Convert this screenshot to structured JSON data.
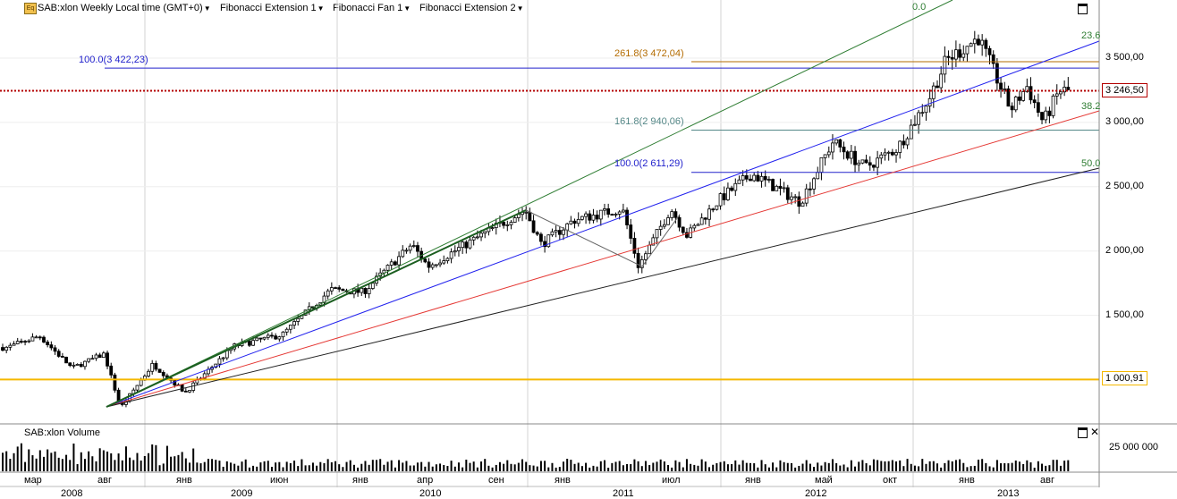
{
  "header": {
    "symbol_icon": "Eq",
    "title": "SAB:xlon Weekly Local time (GMT+0)",
    "menus": [
      "Fibonacci Extension 1",
      "Fibonacci Fan 1",
      "Fibonacci Extension 2"
    ]
  },
  "price_axis": {
    "ticks": [
      "3 500,00",
      "3 000,00",
      "2 500,00",
      "2 000,00",
      "1 500,00",
      "1 000,00"
    ],
    "tick_values": [
      3500,
      3000,
      2500,
      2000,
      1500,
      1000
    ],
    "current_price": "3 246,50",
    "current_value": 3246.5,
    "support_price": "1 000,91",
    "support_value": 1000.91
  },
  "volume_panel": {
    "title": "SAB:xlon Volume",
    "tick": "25 000 000",
    "tick_value": 25000000
  },
  "time_axis": {
    "months": [
      "мар",
      "авг",
      "янв",
      "июн",
      "янв",
      "апр",
      "сен",
      "янв",
      "июл",
      "янв",
      "май",
      "окт",
      "янв",
      "авг"
    ],
    "years": [
      "2008",
      "2009",
      "2010",
      "2011",
      "2012",
      "2013"
    ]
  },
  "fib_labels": {
    "ext1_100": "100.0(3 422,23)",
    "ext2_261": "261.8(3 472,04)",
    "ext2_161": "161.8(2 940,06)",
    "ext2_100": "100.0(2 611,29)",
    "fan_0": "0.0",
    "fan_236": "23.6",
    "fan_382": "38.2",
    "fan_50": "50.0"
  },
  "colors": {
    "support": "#f5b800",
    "current": "#b30000",
    "ext1": "#2222cc",
    "ext2_261": "#b36b00",
    "ext2_161": "#558888",
    "fan_0": "#2e7d32",
    "fan_236": "#2222ee",
    "fan_382": "#e53935",
    "fan_50": "#222222"
  },
  "chart_data": {
    "type": "candlestick",
    "symbol": "SAB:xlon",
    "interval": "Weekly",
    "ylim": [
      700,
      3800
    ],
    "x_range": [
      "2008-03",
      "2013-08"
    ],
    "key_points": [
      {
        "date": "2008-03",
        "close": 1250
      },
      {
        "date": "2008-05",
        "close": 1340
      },
      {
        "date": "2008-07",
        "close": 1090
      },
      {
        "date": "2008-09",
        "close": 1200
      },
      {
        "date": "2008-10",
        "close": 780
      },
      {
        "date": "2008-12",
        "close": 1120
      },
      {
        "date": "2009-02",
        "close": 900
      },
      {
        "date": "2009-05",
        "close": 1260
      },
      {
        "date": "2009-08",
        "close": 1350
      },
      {
        "date": "2009-11",
        "close": 1700
      },
      {
        "date": "2010-01",
        "close": 1680
      },
      {
        "date": "2010-04",
        "close": 2050
      },
      {
        "date": "2010-05",
        "close": 1880
      },
      {
        "date": "2010-08",
        "close": 2100
      },
      {
        "date": "2010-11",
        "close": 2320
      },
      {
        "date": "2010-12",
        "close": 2050
      },
      {
        "date": "2011-02",
        "close": 2240
      },
      {
        "date": "2011-05",
        "close": 2330
      },
      {
        "date": "2011-06",
        "close": 1880
      },
      {
        "date": "2011-08",
        "close": 2330
      },
      {
        "date": "2011-09",
        "close": 2120
      },
      {
        "date": "2011-11",
        "close": 2400
      },
      {
        "date": "2012-01",
        "close": 2600
      },
      {
        "date": "2012-04",
        "close": 2380
      },
      {
        "date": "2012-06",
        "close": 2850
      },
      {
        "date": "2012-08",
        "close": 2650
      },
      {
        "date": "2012-10",
        "close": 2800
      },
      {
        "date": "2012-12",
        "close": 3200
      },
      {
        "date": "2013-01",
        "close": 3480
      },
      {
        "date": "2013-03",
        "close": 3660
      },
      {
        "date": "2013-05",
        "close": 3100
      },
      {
        "date": "2013-06",
        "close": 3280
      },
      {
        "date": "2013-07",
        "close": 3000
      },
      {
        "date": "2013-08",
        "close": 3246.5
      }
    ],
    "horizontal_lines": [
      {
        "name": "current",
        "value": 3246.5
      },
      {
        "name": "support",
        "value": 1000.91
      },
      {
        "name": "ext1_100",
        "value": 3422.23
      },
      {
        "name": "ext2_261",
        "value": 3472.04
      },
      {
        "name": "ext2_161",
        "value": 2940.06
      },
      {
        "name": "ext2_100",
        "value": 2611.29
      }
    ]
  }
}
